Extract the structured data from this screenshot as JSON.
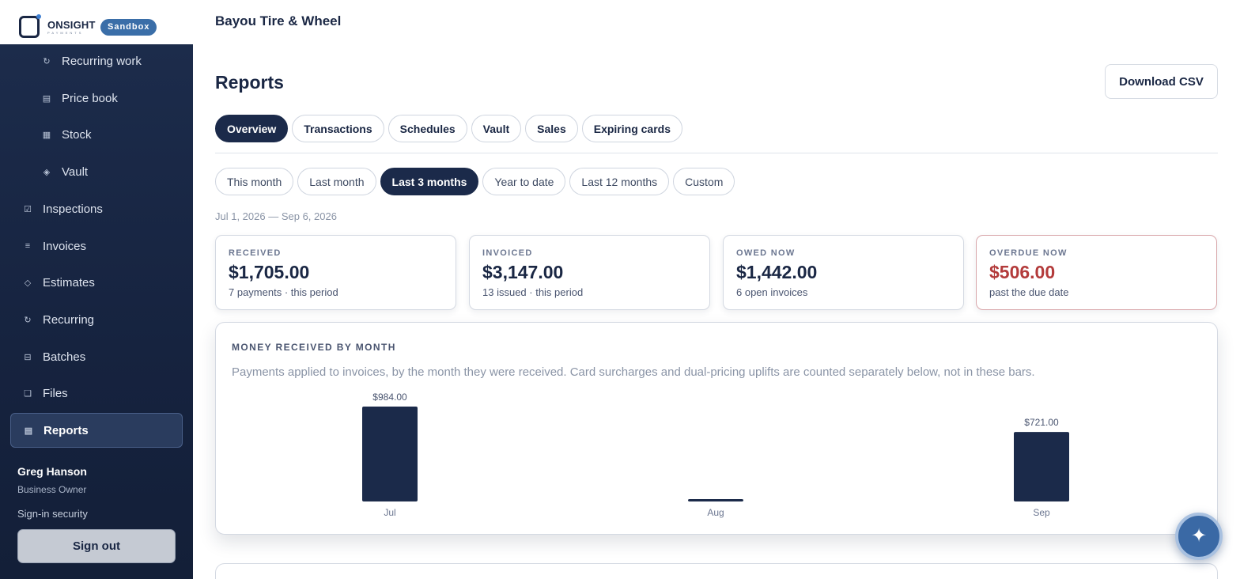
{
  "brand": {
    "name": "ONSIGHT",
    "sub": "PAYMENTS",
    "badge": "Sandbox"
  },
  "sidebar": {
    "items": [
      {
        "label": "Recurring work",
        "icon": "refresh-icon",
        "glyph": "↻"
      },
      {
        "label": "Price book",
        "icon": "list-icon",
        "glyph": "▤"
      },
      {
        "label": "Stock",
        "icon": "grid-icon",
        "glyph": "▦"
      },
      {
        "label": "Vault",
        "icon": "diamond-icon",
        "glyph": "◈"
      },
      {
        "label": "Inspections",
        "icon": "checkbox-icon",
        "glyph": "☑"
      },
      {
        "label": "Invoices",
        "icon": "lines-icon",
        "glyph": "≡"
      },
      {
        "label": "Estimates",
        "icon": "diamond-outline-icon",
        "glyph": "◇"
      },
      {
        "label": "Recurring",
        "icon": "refresh-icon",
        "glyph": "↻"
      },
      {
        "label": "Batches",
        "icon": "stack-icon",
        "glyph": "⊟"
      },
      {
        "label": "Files",
        "icon": "file-icon",
        "glyph": "❏"
      },
      {
        "label": "Reports",
        "icon": "report-icon",
        "glyph": "▤"
      }
    ],
    "user": {
      "name": "Greg Hanson",
      "role": "Business Owner"
    },
    "security_link": "Sign-in security",
    "sign_out": "Sign out"
  },
  "header": {
    "business": "Bayou Tire & Wheel"
  },
  "page": {
    "title": "Reports",
    "download": "Download CSV"
  },
  "tabs": [
    "Overview",
    "Transactions",
    "Schedules",
    "Vault",
    "Sales",
    "Expiring cards"
  ],
  "ranges": [
    "This month",
    "Last month",
    "Last 3 months",
    "Year to date",
    "Last 12 months",
    "Custom"
  ],
  "period": "Jul 1, 2026 — Sep 6, 2026",
  "cards": [
    {
      "label": "RECEIVED",
      "value": "$1,705.00",
      "sub": "7 payments · this period"
    },
    {
      "label": "INVOICED",
      "value": "$3,147.00",
      "sub": "13 issued · this period"
    },
    {
      "label": "OWED NOW",
      "value": "$1,442.00",
      "sub": "6 open invoices"
    },
    {
      "label": "OVERDUE NOW",
      "value": "$506.00",
      "sub": "past the due date"
    }
  ],
  "chart": {
    "title": "MONEY RECEIVED BY MONTH",
    "description": "Payments applied to invoices, by the month they were received. Card surcharges and dual-pricing uplifts are counted separately below, not in these bars."
  },
  "chart_data": {
    "type": "bar",
    "categories": [
      "Jul",
      "Aug",
      "Sep"
    ],
    "values": [
      984,
      0,
      721
    ],
    "data_labels": [
      "$984.00",
      "",
      "$721.00"
    ],
    "title": "MONEY RECEIVED BY MONTH",
    "xlabel": "",
    "ylabel": "",
    "ylim": [
      0,
      984
    ],
    "grid": false,
    "bar_color": "#1b2a4a"
  },
  "colors": {
    "navy": "#1b2a4a",
    "accent": "#3a69a5",
    "alert": "#b33b3b"
  },
  "fab_icon": "sparkle-icon"
}
